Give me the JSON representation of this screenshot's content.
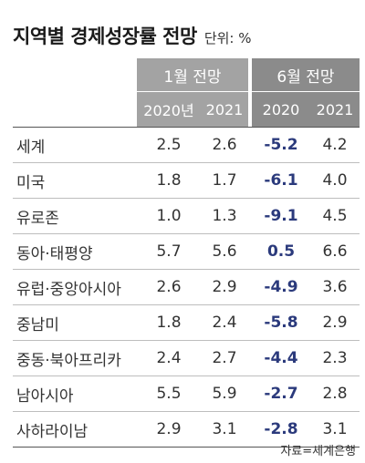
{
  "title": "지역별 경제성장률 전망",
  "unit": "단위: %",
  "header": {
    "group1": "1월 전망",
    "group2": "6월 전망",
    "years": [
      "2020년",
      "2021",
      "2020",
      "2021"
    ]
  },
  "rows": [
    {
      "region": "세계",
      "jan_2020": "2.5",
      "jan_2021": "2.6",
      "jun_2020": "-5.2",
      "jun_2021": "4.2"
    },
    {
      "region": "미국",
      "jan_2020": "1.8",
      "jan_2021": "1.7",
      "jun_2020": "-6.1",
      "jun_2021": "4.0"
    },
    {
      "region": "유로존",
      "jan_2020": "1.0",
      "jan_2021": "1.3",
      "jun_2020": "-9.1",
      "jun_2021": "4.5"
    },
    {
      "region": "동아·태평양",
      "jan_2020": "5.7",
      "jan_2021": "5.6",
      "jun_2020": "0.5",
      "jun_2021": "6.6"
    },
    {
      "region": "유럽·중앙아시아",
      "jan_2020": "2.6",
      "jan_2021": "2.9",
      "jun_2020": "-4.9",
      "jun_2021": "3.6"
    },
    {
      "region": "중남미",
      "jan_2020": "1.8",
      "jan_2021": "2.4",
      "jun_2020": "-5.8",
      "jun_2021": "2.9"
    },
    {
      "region": "중동·북아프리카",
      "jan_2020": "2.4",
      "jan_2021": "2.7",
      "jun_2020": "-4.4",
      "jun_2021": "2.3"
    },
    {
      "region": "남아시아",
      "jan_2020": "5.5",
      "jan_2021": "5.9",
      "jun_2020": "-2.7",
      "jun_2021": "2.8"
    },
    {
      "region": "사하라이남",
      "jan_2020": "2.9",
      "jan_2021": "3.1",
      "jun_2020": "-2.8",
      "jun_2021": "3.1"
    }
  ],
  "source": "자료=세계은행",
  "colors": {
    "header_light": "#a3a3a3",
    "header_dark": "#8b8b8b",
    "highlight_value": "#2b3a7c"
  }
}
